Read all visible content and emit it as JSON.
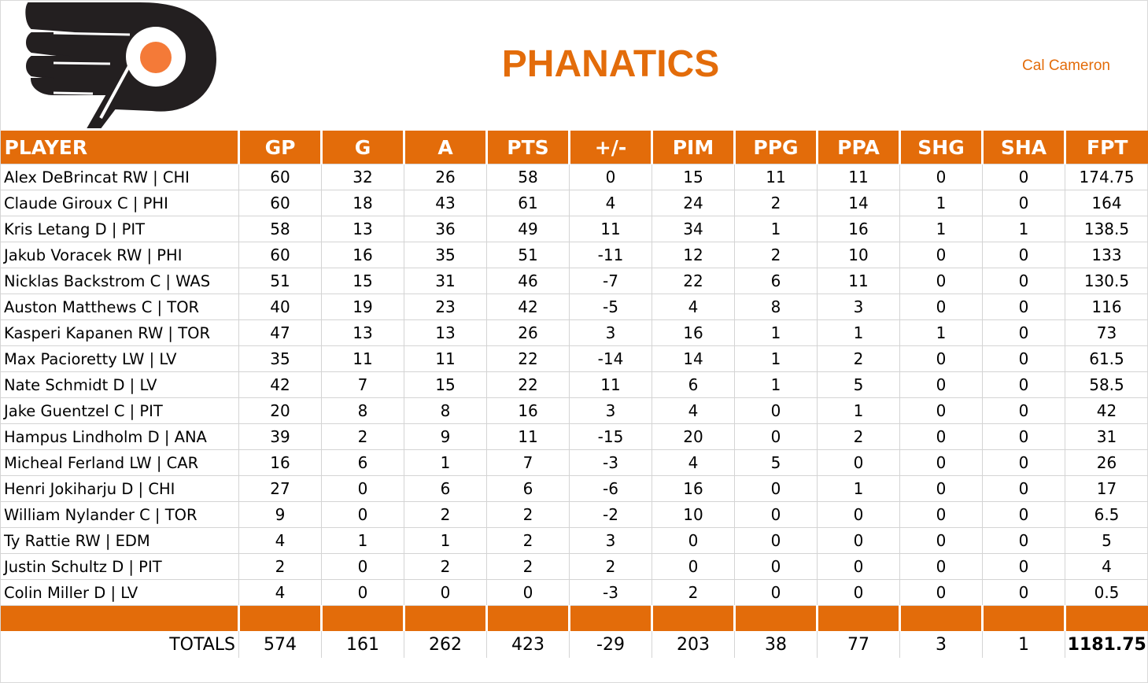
{
  "header": {
    "team_name": "PHANATICS",
    "owner_name": "Cal Cameron",
    "logo": "flyers-logo-icon"
  },
  "colors": {
    "accent": "#e36c0a",
    "logo_orange": "#f47a38",
    "logo_black": "#231f20"
  },
  "table": {
    "columns": [
      "PLAYER",
      "GP",
      "G",
      "A",
      "PTS",
      "+/-",
      "PIM",
      "PPG",
      "PPA",
      "SHG",
      "SHA",
      "FPT"
    ],
    "rows": [
      [
        "Alex DeBrincat RW | CHI",
        "60",
        "32",
        "26",
        "58",
        "0",
        "15",
        "11",
        "11",
        "0",
        "0",
        "174.75"
      ],
      [
        "Claude Giroux C | PHI",
        "60",
        "18",
        "43",
        "61",
        "4",
        "24",
        "2",
        "14",
        "1",
        "0",
        "164"
      ],
      [
        "Kris Letang D | PIT",
        "58",
        "13",
        "36",
        "49",
        "11",
        "34",
        "1",
        "16",
        "1",
        "1",
        "138.5"
      ],
      [
        "Jakub Voracek RW | PHI",
        "60",
        "16",
        "35",
        "51",
        "-11",
        "12",
        "2",
        "10",
        "0",
        "0",
        "133"
      ],
      [
        "Nicklas Backstrom C | WAS",
        "51",
        "15",
        "31",
        "46",
        "-7",
        "22",
        "6",
        "11",
        "0",
        "0",
        "130.5"
      ],
      [
        "Auston Matthews C | TOR",
        "40",
        "19",
        "23",
        "42",
        "-5",
        "4",
        "8",
        "3",
        "0",
        "0",
        "116"
      ],
      [
        "Kasperi Kapanen RW | TOR",
        "47",
        "13",
        "13",
        "26",
        "3",
        "16",
        "1",
        "1",
        "1",
        "0",
        "73"
      ],
      [
        "Max Pacioretty LW | LV",
        "35",
        "11",
        "11",
        "22",
        "-14",
        "14",
        "1",
        "2",
        "0",
        "0",
        "61.5"
      ],
      [
        "Nate Schmidt D | LV",
        "42",
        "7",
        "15",
        "22",
        "11",
        "6",
        "1",
        "5",
        "0",
        "0",
        "58.5"
      ],
      [
        "Jake Guentzel C | PIT",
        "20",
        "8",
        "8",
        "16",
        "3",
        "4",
        "0",
        "1",
        "0",
        "0",
        "42"
      ],
      [
        "Hampus Lindholm D | ANA",
        "39",
        "2",
        "9",
        "11",
        "-15",
        "20",
        "0",
        "2",
        "0",
        "0",
        "31"
      ],
      [
        "Micheal Ferland LW | CAR",
        "16",
        "6",
        "1",
        "7",
        "-3",
        "4",
        "5",
        "0",
        "0",
        "0",
        "26"
      ],
      [
        "Henri Jokiharju D | CHI",
        "27",
        "0",
        "6",
        "6",
        "-6",
        "16",
        "0",
        "1",
        "0",
        "0",
        "17"
      ],
      [
        "William Nylander C | TOR",
        "9",
        "0",
        "2",
        "2",
        "-2",
        "10",
        "0",
        "0",
        "0",
        "0",
        "6.5"
      ],
      [
        "Ty Rattie RW | EDM",
        "4",
        "1",
        "1",
        "2",
        "3",
        "0",
        "0",
        "0",
        "0",
        "0",
        "5"
      ],
      [
        "Justin Schultz D | PIT",
        "2",
        "0",
        "2",
        "2",
        "2",
        "0",
        "0",
        "0",
        "0",
        "0",
        "4"
      ],
      [
        "Colin Miller D | LV",
        "4",
        "0",
        "0",
        "0",
        "-3",
        "2",
        "0",
        "0",
        "0",
        "0",
        "0.5"
      ]
    ],
    "totals": {
      "label": "TOTALS",
      "values": [
        "574",
        "161",
        "262",
        "423",
        "-29",
        "203",
        "38",
        "77",
        "3",
        "1",
        "1181.75"
      ]
    }
  }
}
